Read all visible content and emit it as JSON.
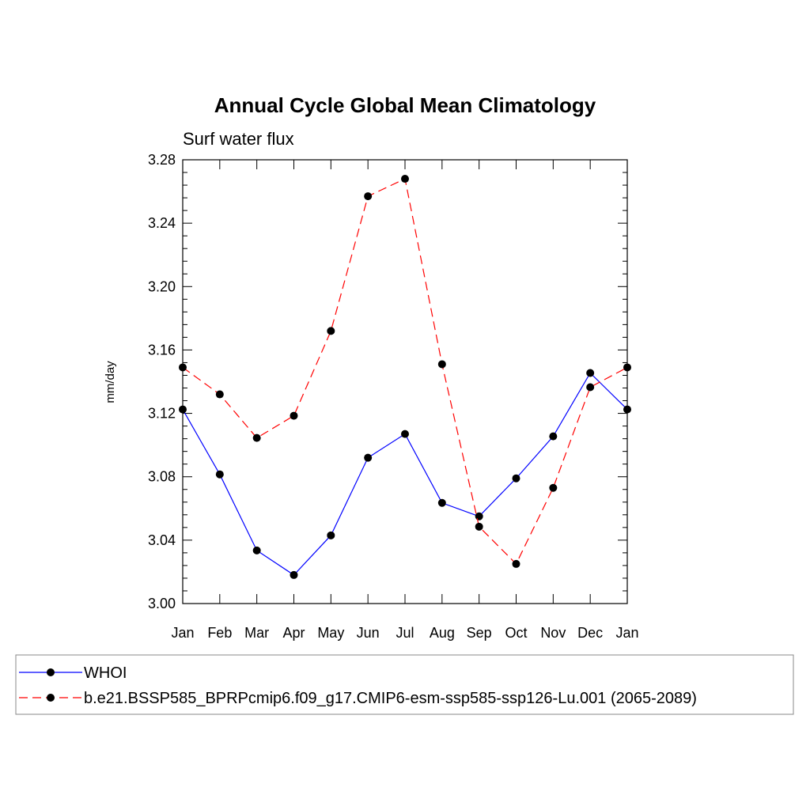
{
  "chart_data": {
    "type": "line",
    "title": "Annual Cycle Global Mean Climatology",
    "subtitle": "Surf water flux",
    "ylabel": "mm/day",
    "xlabel": "",
    "categories": [
      "Jan",
      "Feb",
      "Mar",
      "Apr",
      "May",
      "Jun",
      "Jul",
      "Aug",
      "Sep",
      "Oct",
      "Nov",
      "Dec",
      "Jan"
    ],
    "ylim": [
      3.0,
      3.28
    ],
    "yticks": [
      "3.00",
      "3.04",
      "3.08",
      "3.12",
      "3.16",
      "3.20",
      "3.24",
      "3.28"
    ],
    "series": [
      {
        "name": "WHOI",
        "color": "#0000ff",
        "dash": "solid",
        "values": [
          3.1225,
          3.0815,
          3.0335,
          3.018,
          3.043,
          3.092,
          3.107,
          3.0635,
          3.055,
          3.079,
          3.1055,
          3.1455,
          3.1225
        ]
      },
      {
        "name": "b.e21.BSSP585_BPRPcmip6.f09_g17.CMIP6-esm-ssp585-ssp126-Lu.001 (2065-2089)",
        "color": "#ff0000",
        "dash": "dashed",
        "values": [
          3.149,
          3.132,
          3.1045,
          3.1185,
          3.172,
          3.257,
          3.268,
          3.151,
          3.0485,
          3.025,
          3.073,
          3.1365,
          3.149
        ]
      }
    ],
    "legend_position": "bottom"
  }
}
